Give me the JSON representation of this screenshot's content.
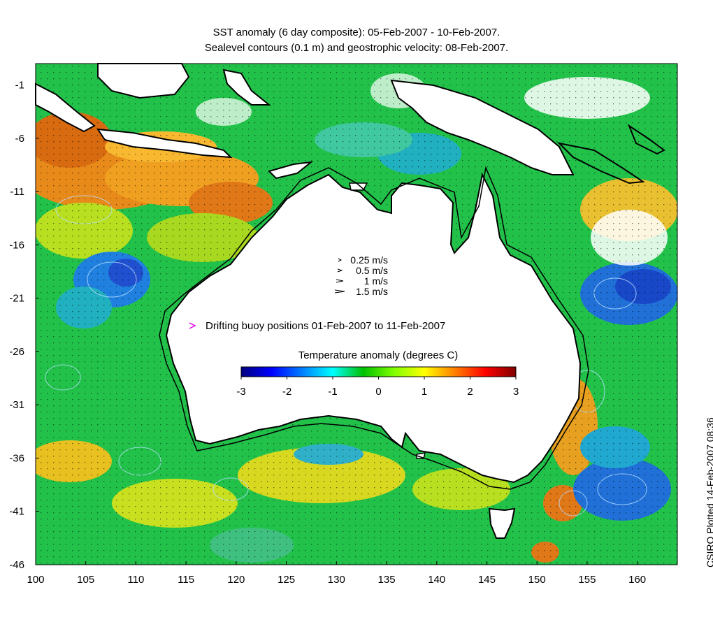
{
  "title": {
    "line1": "SST anomaly (6 day composite): 05-Feb-2007 - 10-Feb-2007.",
    "line2": "Sealevel contours (0.1 m) and geostrophic velocity: 08-Feb-2007."
  },
  "axes": {
    "x_ticks": [
      100,
      105,
      110,
      115,
      120,
      125,
      130,
      135,
      140,
      145,
      150,
      155,
      160
    ],
    "y_ticks": [
      -1,
      -6,
      -11,
      -16,
      -21,
      -26,
      -31,
      -36,
      -41,
      -46
    ],
    "xlim": [
      100,
      164
    ],
    "ylim": [
      -46,
      1
    ]
  },
  "velocity_key": {
    "items": [
      {
        "label": "0.25 m/s",
        "speed": 0.25
      },
      {
        "label": "0.5 m/s",
        "speed": 0.5
      },
      {
        "label": "1 m/s",
        "speed": 1
      },
      {
        "label": "1.5 m/s",
        "speed": 1.5
      }
    ]
  },
  "buoy_legend": {
    "label": "Drifting buoy positions 01-Feb-2007 to 11-Feb-2007",
    "color": "#e000e0"
  },
  "colorbar": {
    "title": "Temperature anomaly (degrees C)",
    "ticks": [
      "-3",
      "-2",
      "-1",
      "0",
      "1",
      "2",
      "3"
    ],
    "range": [
      -3,
      3
    ],
    "colors": [
      "#00007f",
      "#0000ff",
      "#007fff",
      "#00ffff",
      "#00c000",
      "#7fff00",
      "#ffff00",
      "#ff7f00",
      "#ff0000",
      "#7f0000"
    ]
  },
  "side_label": "CSIRO Plotted 14-Feb-2007 08:36",
  "colors": {
    "land": "#ffffff",
    "coast": "#000000",
    "ocean_base": "#20c040",
    "contour": "#b0d8ff"
  }
}
